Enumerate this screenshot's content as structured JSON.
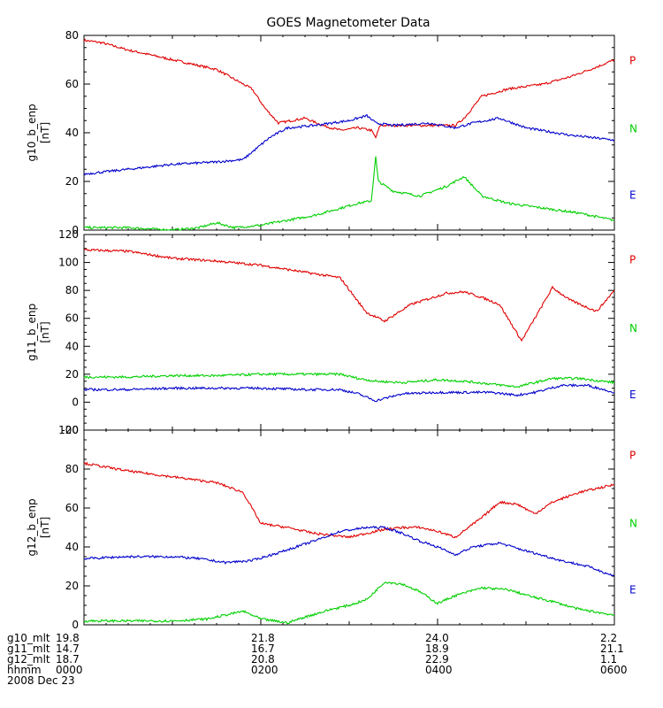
{
  "chart_data": {
    "type": "line",
    "title": "GOES Magnetometer Data",
    "x_range_hours": [
      0,
      6
    ],
    "component_colors": {
      "P": "#e00000",
      "N": "#00d000",
      "E": "#0000cc"
    },
    "panels": [
      {
        "ylabel": "g10_b_enp",
        "units": "[nT]",
        "ylim": [
          0,
          80
        ],
        "yticks": [
          "0",
          "20",
          "40",
          "60",
          "80"
        ],
        "series": [
          {
            "name": "P",
            "x": [
              0,
              0.2,
              0.5,
              1.0,
              1.5,
              1.9,
              2.05,
              2.2,
              2.5,
              2.7,
              2.9,
              3.1,
              3.25,
              3.3,
              3.35,
              3.6,
              3.9,
              4.2,
              4.3,
              4.5,
              4.8,
              5.2,
              5.5,
              5.8,
              6.0
            ],
            "y": [
              78,
              77,
              74,
              70,
              66,
              58,
              50,
              44,
              46,
              43,
              41,
              42,
              41,
              38,
              43,
              43,
              43,
              43,
              46,
              55,
              58,
              60,
              63,
              67,
              70
            ]
          },
          {
            "name": "N",
            "x": [
              0,
              0.5,
              1.0,
              1.3,
              1.5,
              1.7,
              2.0,
              2.3,
              2.6,
              2.9,
              3.1,
              3.25,
              3.3,
              3.33,
              3.5,
              3.8,
              4.1,
              4.3,
              4.5,
              4.8,
              5.2,
              5.6,
              6.0
            ],
            "y": [
              1,
              1,
              0,
              1,
              3,
              1,
              2,
              4,
              6,
              9,
              11,
              12,
              30,
              20,
              16,
              14,
              18,
              22,
              14,
              11,
              9,
              7,
              4
            ]
          },
          {
            "name": "E",
            "x": [
              0,
              0.5,
              1.0,
              1.5,
              1.8,
              2.1,
              2.3,
              2.6,
              3.0,
              3.2,
              3.3,
              3.5,
              3.9,
              4.2,
              4.4,
              4.7,
              5.0,
              5.5,
              6.0
            ],
            "y": [
              23,
              25,
              27,
              28,
              29,
              38,
              42,
              43,
              45,
              47,
              44,
              43,
              44,
              42,
              44,
              46,
              42,
              39,
              37
            ]
          }
        ]
      },
      {
        "ylabel": "g11_b_enp",
        "units": "[nT]",
        "ylim": [
          -20,
          120
        ],
        "yticks": [
          "-20",
          "0",
          "20",
          "40",
          "60",
          "80",
          "100",
          "120"
        ],
        "series": [
          {
            "name": "P",
            "x": [
              0,
              0.5,
              1.0,
              1.5,
              2.0,
              2.5,
              2.9,
              3.1,
              3.2,
              3.4,
              3.7,
              3.9,
              4.1,
              4.3,
              4.5,
              4.7,
              4.95,
              5.1,
              5.3,
              5.5,
              5.8,
              6.0
            ],
            "y": [
              109,
              108,
              103,
              101,
              98,
              93,
              89,
              72,
              64,
              58,
              70,
              74,
              78,
              79,
              75,
              70,
              44,
              60,
              82,
              73,
              65,
              80
            ]
          },
          {
            "name": "N",
            "x": [
              0,
              0.5,
              1.0,
              1.5,
              2.0,
              2.5,
              2.9,
              3.1,
              3.3,
              3.6,
              4.0,
              4.3,
              4.6,
              4.9,
              5.1,
              5.3,
              5.6,
              6.0
            ],
            "y": [
              18,
              18,
              19,
              19,
              20,
              20,
              20,
              17,
              15,
              14,
              16,
              15,
              13,
              11,
              14,
              17,
              17,
              14
            ]
          },
          {
            "name": "E",
            "x": [
              0,
              0.5,
              1.0,
              1.5,
              2.0,
              2.5,
              2.9,
              3.1,
              3.3,
              3.6,
              4.0,
              4.3,
              4.6,
              4.9,
              5.1,
              5.4,
              5.7,
              6.0
            ],
            "y": [
              9,
              9,
              10,
              10,
              10,
              9,
              9,
              6,
              1,
              6,
              7,
              7,
              7,
              5,
              7,
              12,
              12,
              7
            ]
          }
        ]
      },
      {
        "ylabel": "g12_b_enp",
        "units": "[nT]",
        "ylim": [
          0,
          100
        ],
        "yticks": [
          "0",
          "20",
          "40",
          "60",
          "80",
          "100"
        ],
        "series": [
          {
            "name": "P",
            "x": [
              0,
              0.5,
              1.0,
              1.5,
              1.8,
              1.9,
              2.0,
              2.3,
              2.6,
              2.8,
              3.0,
              3.2,
              3.4,
              3.6,
              3.8,
              4.0,
              4.2,
              4.5,
              4.7,
              4.9,
              5.1,
              5.3,
              5.6,
              6.0
            ],
            "y": [
              83,
              79,
              76,
              73,
              68,
              60,
              52,
              50,
              47,
              46,
              45,
              47,
              49,
              50,
              50,
              48,
              45,
              55,
              63,
              62,
              57,
              63,
              68,
              72
            ]
          },
          {
            "name": "N",
            "x": [
              0,
              0.5,
              1.0,
              1.4,
              1.6,
              1.8,
              2.0,
              2.3,
              2.5,
              2.8,
              3.0,
              3.2,
              3.4,
              3.6,
              3.8,
              4.0,
              4.2,
              4.5,
              4.8,
              5.1,
              5.3,
              5.6,
              6.0
            ],
            "y": [
              2,
              2,
              2,
              3,
              5,
              7,
              3,
              1,
              4,
              8,
              10,
              13,
              22,
              21,
              17,
              11,
              15,
              19,
              18,
              14,
              12,
              8,
              5
            ]
          },
          {
            "name": "E",
            "x": [
              0,
              0.5,
              1.0,
              1.3,
              1.6,
              1.9,
              2.2,
              2.6,
              2.9,
              3.2,
              3.4,
              3.6,
              3.8,
              4.0,
              4.2,
              4.4,
              4.7,
              5.0,
              5.4,
              5.7,
              6.0
            ],
            "y": [
              34,
              35,
              35,
              34,
              32,
              33,
              37,
              43,
              48,
              50,
              50,
              47,
              43,
              40,
              36,
              40,
              42,
              38,
              33,
              30,
              25
            ]
          }
        ]
      }
    ]
  },
  "footer": {
    "rows": [
      {
        "label": "g10_mlt",
        "values": [
          "19.8",
          "21.8",
          "24.0",
          "2.2"
        ]
      },
      {
        "label": "g11_mlt",
        "values": [
          "14.7",
          "16.7",
          "18.9",
          "21.1"
        ]
      },
      {
        "label": "g12_mlt",
        "values": [
          "18.7",
          "20.8",
          "22.9",
          "1.1"
        ]
      },
      {
        "label": "hhmm",
        "values": [
          "0000",
          "0200",
          "0400",
          "0600"
        ]
      }
    ],
    "date": "2008 Dec 23"
  }
}
